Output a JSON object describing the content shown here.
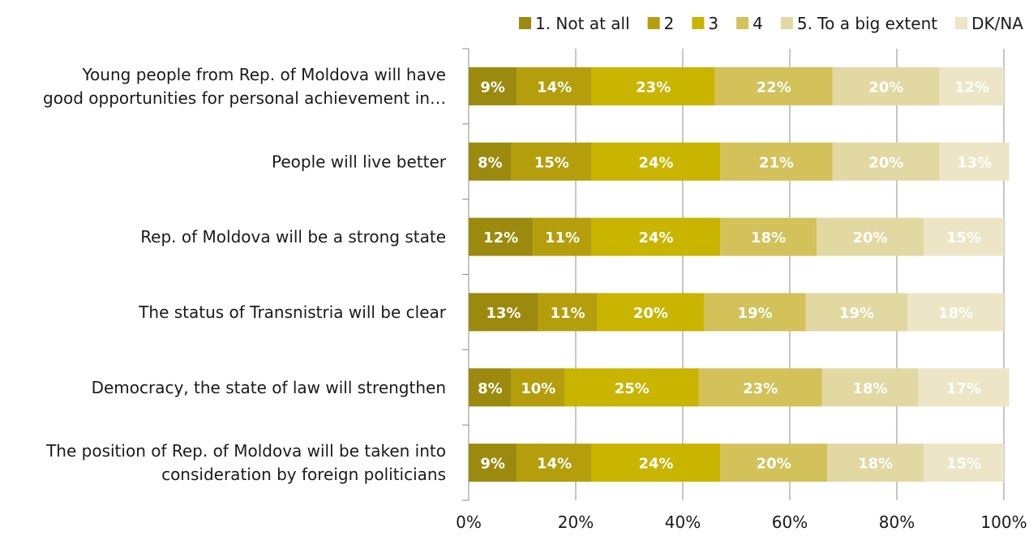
{
  "chart_data": {
    "type": "bar",
    "orientation": "horizontal",
    "stacked": true,
    "title": "",
    "xlabel": "",
    "ylabel": "",
    "xlim": [
      0,
      100
    ],
    "x_ticks": [
      "0%",
      "20%",
      "40%",
      "60%",
      "80%",
      "100%"
    ],
    "grid": true,
    "legend_position": "top-right",
    "categories": [
      [
        "Young people from Rep. of Moldova will have",
        "good opportunities for personal achievement in…"
      ],
      [
        "People will live better"
      ],
      [
        "Rep. of Moldova will be a strong state"
      ],
      [
        "The status of Transnistria will be clear"
      ],
      [
        "Democracy, the state of law will strengthen"
      ],
      [
        "The position of Rep. of Moldova will be taken into",
        "consideration by foreign politicians"
      ]
    ],
    "series": [
      {
        "name": "1. Not at all",
        "color": "#9c8a0e",
        "values": [
          9,
          8,
          12,
          13,
          8,
          9
        ]
      },
      {
        "name": "2",
        "color": "#b59e0c",
        "values": [
          14,
          15,
          11,
          11,
          10,
          14
        ]
      },
      {
        "name": "3",
        "color": "#c9b400",
        "values": [
          23,
          24,
          24,
          20,
          25,
          24
        ]
      },
      {
        "name": "4",
        "color": "#d3c15a",
        "values": [
          22,
          21,
          18,
          19,
          23,
          20
        ]
      },
      {
        "name": "5. To a big extent",
        "color": "#e2d8a2",
        "values": [
          20,
          20,
          20,
          19,
          18,
          18
        ]
      },
      {
        "name": "DK/NA",
        "color": "#ede6c6",
        "values": [
          12,
          13,
          15,
          18,
          17,
          15
        ]
      }
    ]
  }
}
